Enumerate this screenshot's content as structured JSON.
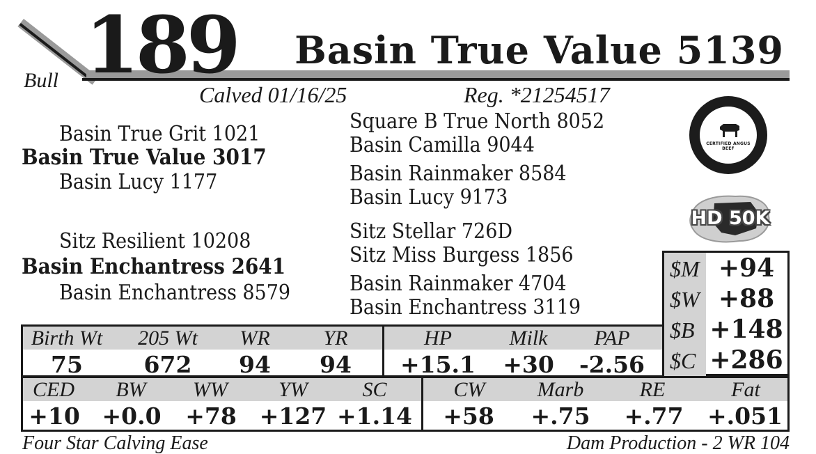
{
  "header": {
    "lot_number": "189",
    "animal_name": "Basin True Value 5139",
    "sex": "Bull",
    "calved": "Calved 01/16/25",
    "registration": "Reg. *21254517"
  },
  "pedigree": {
    "sire": {
      "name": "Basin True Value 3017",
      "sire": "Basin True Grit 1021",
      "dam": "Basin Lucy 1177",
      "sire_sire": "Square B True North 8052",
      "sire_dam": "Basin Camilla 9044",
      "dam_sire": "Basin Rainmaker 8584",
      "dam_dam": "Basin Lucy 9173"
    },
    "dam": {
      "name": "Basin Enchantress 2641",
      "sire": "Sitz Resilient 10208",
      "dam": "Basin Enchantress 8579",
      "sire_sire": "Sitz Stellar 726D",
      "sire_dam": "Sitz Miss Burgess 1856",
      "dam_sire": "Basin Rainmaker 4704",
      "dam_dam": "Basin Enchantress 3119"
    }
  },
  "badges": {
    "seal_icon": "certified-angus-beef-seal-icon",
    "seal_text": "CERTIFIED ANGUS BEEF",
    "genomic_icon": "hd50k-icon",
    "genomic_text": "HD 50K"
  },
  "dollar_values": [
    {
      "label": "$M",
      "value": "+94"
    },
    {
      "label": "$W",
      "value": "+88"
    },
    {
      "label": "$B",
      "value": "+148"
    },
    {
      "label": "$C",
      "value": "+286"
    }
  ],
  "performance": {
    "headers": [
      "Birth Wt",
      "205 Wt",
      "WR",
      "YR"
    ],
    "values": [
      "75",
      "672",
      "94",
      "94"
    ]
  },
  "maternal": {
    "headers": [
      "HP",
      "Milk",
      "PAP"
    ],
    "values": [
      "+15.1",
      "+30",
      "-2.56"
    ]
  },
  "growth_epds": {
    "headers": [
      "CED",
      "BW",
      "WW",
      "YW",
      "SC"
    ],
    "values": [
      "+10",
      "+0.0",
      "+78",
      "+127",
      "+1.14"
    ]
  },
  "carcass_epds": {
    "headers": [
      "CW",
      "Marb",
      "RE",
      "Fat"
    ],
    "values": [
      "+58",
      "+.75",
      "+.77",
      "+.051"
    ]
  },
  "footer": {
    "left": "Four Star Calving Ease",
    "right": "Dam Production - 2 WR 104"
  },
  "colors": {
    "ink": "#1a1a1a",
    "grey_band": "#9a9a9a",
    "header_fill": "#d3d3d3"
  }
}
